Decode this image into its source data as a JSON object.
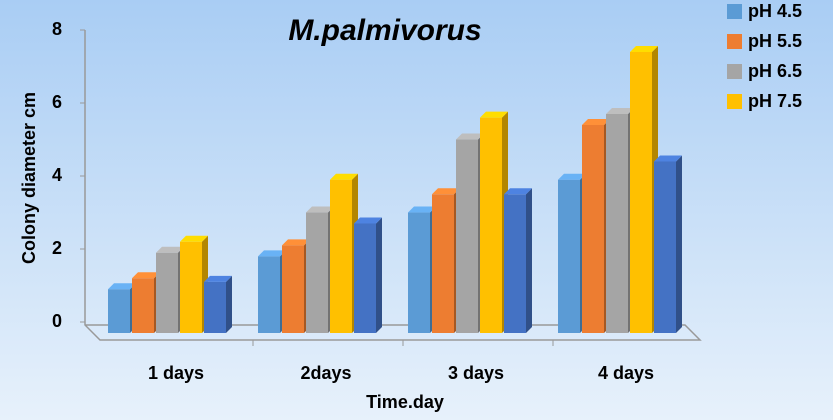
{
  "chart_data": {
    "type": "bar3d",
    "title": "M.palmivorus",
    "x_label": "Time.day",
    "y_label": "Colony diameter cm",
    "categories": [
      "1 days",
      "2days",
      "3 days",
      "4 days"
    ],
    "series": [
      {
        "name": "pH 4.5",
        "color": "#5b9bd5",
        "values": [
          1.2,
          2.1,
          3.3,
          4.2
        ]
      },
      {
        "name": "pH 5.5",
        "color": "#ed7d31",
        "values": [
          1.5,
          2.4,
          3.8,
          5.7
        ]
      },
      {
        "name": "pH 6.5",
        "color": "#a5a5a5",
        "values": [
          2.2,
          3.3,
          5.3,
          6.0
        ]
      },
      {
        "name": "pH 7.5",
        "color": "#ffc000",
        "values": [
          2.5,
          4.2,
          5.9,
          7.7
        ]
      },
      {
        "color": "#4472c4",
        "values": [
          1.4,
          3.0,
          3.8,
          4.7
        ]
      }
    ],
    "ylim": [
      0,
      8
    ],
    "yticks": [
      0,
      2,
      4,
      6,
      8
    ],
    "legend": "top-right"
  }
}
